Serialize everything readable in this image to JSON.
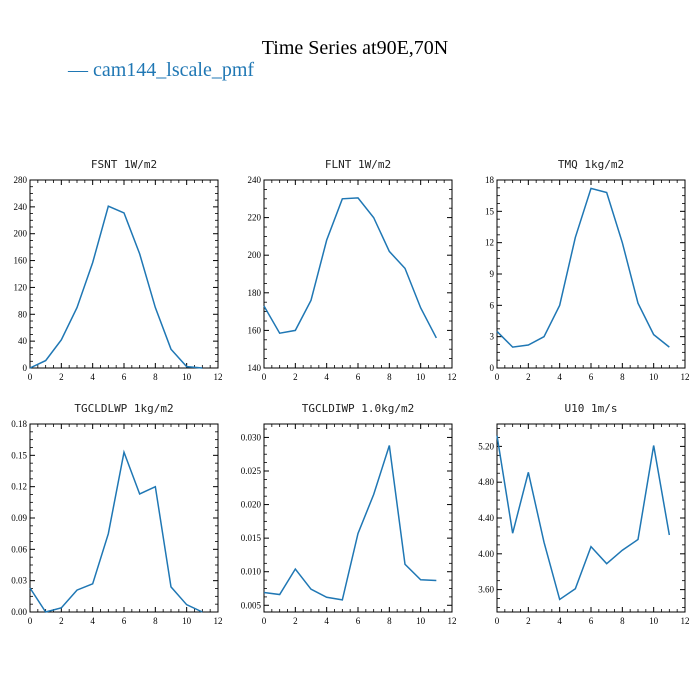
{
  "figure": {
    "title": "Time Series at90E,70N",
    "legend_label": "— cam144_lscale_pmf",
    "series_color": "#1f77b4"
  },
  "chart_data": [
    {
      "type": "line",
      "title": "FSNT   1W/m2",
      "x": [
        0,
        1,
        2,
        3,
        4,
        5,
        6,
        7,
        8,
        9,
        10,
        11
      ],
      "series": [
        {
          "name": "cam144_lscale_pmf",
          "values": [
            0,
            11,
            42,
            90,
            157,
            241,
            231,
            170,
            90,
            28,
            2,
            0
          ]
        }
      ],
      "xlim": [
        0,
        12
      ],
      "xticks": [
        0,
        2,
        4,
        6,
        8,
        10,
        12
      ],
      "ylim": [
        0,
        280
      ],
      "yticks": [
        0,
        40,
        80,
        120,
        160,
        200,
        240,
        280
      ],
      "ytick_labels": [
        "0",
        "40",
        "80",
        "120",
        "160",
        "200",
        "240",
        "280"
      ]
    },
    {
      "type": "line",
      "title": "FLNT   1W/m2",
      "x": [
        0,
        1,
        2,
        3,
        4,
        5,
        6,
        7,
        8,
        9,
        10,
        11
      ],
      "series": [
        {
          "name": "cam144_lscale_pmf",
          "values": [
            173,
            158.5,
            160,
            176,
            208,
            230,
            230.5,
            220,
            202,
            193,
            172,
            156
          ]
        }
      ],
      "xlim": [
        0,
        12
      ],
      "xticks": [
        0,
        2,
        4,
        6,
        8,
        10,
        12
      ],
      "ylim": [
        140,
        240
      ],
      "yticks": [
        140,
        160,
        180,
        200,
        220,
        240
      ],
      "ytick_labels": [
        "140",
        "160",
        "180",
        "200",
        "220",
        "240"
      ]
    },
    {
      "type": "line",
      "title": "TMQ   1kg/m2",
      "x": [
        0,
        1,
        2,
        3,
        4,
        5,
        6,
        7,
        8,
        9,
        10,
        11
      ],
      "series": [
        {
          "name": "cam144_lscale_pmf",
          "values": [
            3.5,
            2.0,
            2.2,
            3.0,
            6.0,
            12.5,
            17.2,
            16.8,
            12.0,
            6.2,
            3.2,
            2.0
          ]
        }
      ],
      "xlim": [
        0,
        12
      ],
      "xticks": [
        0,
        2,
        4,
        6,
        8,
        10,
        12
      ],
      "ylim": [
        0,
        18
      ],
      "yticks": [
        0,
        3,
        6,
        9,
        12,
        15,
        18
      ],
      "ytick_labels": [
        "0",
        "3",
        "6",
        "9",
        "12",
        "15",
        "18"
      ]
    },
    {
      "type": "line",
      "title": "TGCLDLWP   1kg/m2",
      "x": [
        0,
        1,
        2,
        3,
        4,
        5,
        6,
        7,
        8,
        9,
        10,
        11
      ],
      "series": [
        {
          "name": "cam144_lscale_pmf",
          "values": [
            0.023,
            0.0,
            0.004,
            0.021,
            0.027,
            0.075,
            0.153,
            0.113,
            0.12,
            0.024,
            0.007,
            0.0
          ]
        }
      ],
      "xlim": [
        0,
        12
      ],
      "xticks": [
        0,
        2,
        4,
        6,
        8,
        10,
        12
      ],
      "ylim": [
        0,
        0.18
      ],
      "yticks": [
        0,
        0.03,
        0.06,
        0.09,
        0.12,
        0.15,
        0.18
      ],
      "ytick_labels": [
        "0.00",
        "0.03",
        "0.06",
        "0.09",
        "0.12",
        "0.15",
        "0.18"
      ]
    },
    {
      "type": "line",
      "title": "TGCLDIWP   1.0kg/m2",
      "x": [
        0,
        1,
        2,
        3,
        4,
        5,
        6,
        7,
        8,
        9,
        10,
        11
      ],
      "series": [
        {
          "name": "cam144_lscale_pmf",
          "values": [
            0.0069,
            0.0066,
            0.0104,
            0.0074,
            0.0062,
            0.0058,
            0.0157,
            0.0215,
            0.0288,
            0.0111,
            0.0088,
            0.0087
          ]
        }
      ],
      "xlim": [
        0,
        12
      ],
      "xticks": [
        0,
        2,
        4,
        6,
        8,
        10,
        12
      ],
      "ylim": [
        0.004,
        0.032
      ],
      "yticks": [
        0.005,
        0.01,
        0.015,
        0.02,
        0.025,
        0.03
      ],
      "ytick_labels": [
        "0.005",
        "0.010",
        "0.015",
        "0.020",
        "0.025",
        "0.030"
      ]
    },
    {
      "type": "line",
      "title": "U10   1m/s",
      "x": [
        0,
        1,
        2,
        3,
        4,
        5,
        6,
        7,
        8,
        9,
        10,
        11
      ],
      "series": [
        {
          "name": "cam144_lscale_pmf",
          "values": [
            5.32,
            4.23,
            4.91,
            4.13,
            3.49,
            3.61,
            4.08,
            3.89,
            4.04,
            4.16,
            5.21,
            4.21
          ]
        }
      ],
      "xlim": [
        0,
        12
      ],
      "xticks": [
        0,
        2,
        4,
        6,
        8,
        10,
        12
      ],
      "ylim": [
        3.35,
        5.45
      ],
      "yticks": [
        3.6,
        4.0,
        4.4,
        4.8,
        5.2
      ],
      "ytick_labels": [
        "3.60",
        "4.00",
        "4.40",
        "4.80",
        "5.20"
      ]
    }
  ]
}
